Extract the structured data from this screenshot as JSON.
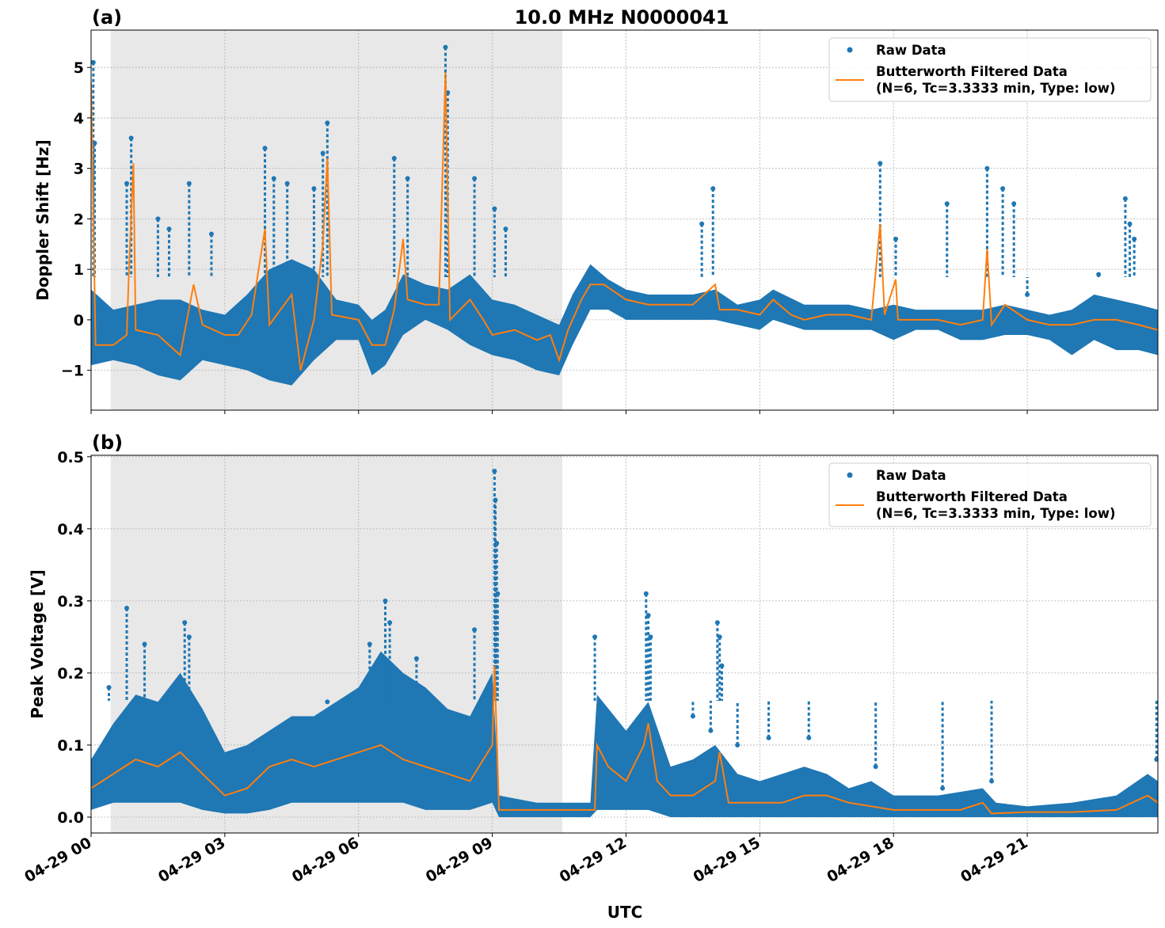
{
  "title": "10.0 MHz N0000041",
  "xlabel": "UTC",
  "x_tick_labels": [
    "04-29 00",
    "04-29 03",
    "04-29 06",
    "04-29 09",
    "04-29 12",
    "04-29 15",
    "04-29 18",
    "04-29 21"
  ],
  "x_tick_hours": [
    0,
    3,
    6,
    9,
    12,
    15,
    18,
    21
  ],
  "colors": {
    "raw": "#1f77b4",
    "filtered": "#ff7f0e",
    "shade": "#e8e8e8"
  },
  "chart_data": [
    {
      "type": "scatter+line",
      "panel_label": "(a)",
      "ylabel": "Doppler Shift [Hz]",
      "xlim": [
        0,
        23.93
      ],
      "ylim": [
        -1.79,
        5.74
      ],
      "y_ticks": [
        -1,
        0,
        1,
        2,
        3,
        4,
        5
      ],
      "y_tick_labels": [
        "−1",
        "0",
        "1",
        "2",
        "3",
        "4",
        "5"
      ],
      "grid": true,
      "legend_position": "top-right",
      "shaded_hours": [
        0.44,
        10.57
      ],
      "legend": {
        "raw": "Raw Data",
        "filtered_1": "Butterworth Filtered Data",
        "filtered_2": "(N=6, Tc=3.3333 min, Type: low)"
      },
      "raw_band": [
        [
          0,
          -0.9,
          0.6
        ],
        [
          0.5,
          -0.8,
          0.2
        ],
        [
          1,
          -0.9,
          0.3
        ],
        [
          1.5,
          -1.1,
          0.4
        ],
        [
          2,
          -1.2,
          0.4
        ],
        [
          2.5,
          -0.8,
          0.2
        ],
        [
          3,
          -0.9,
          0.1
        ],
        [
          3.5,
          -1.0,
          0.5
        ],
        [
          4,
          -1.2,
          1.0
        ],
        [
          4.5,
          -1.3,
          1.2
        ],
        [
          5,
          -0.8,
          1.0
        ],
        [
          5.5,
          -0.4,
          0.4
        ],
        [
          6,
          -0.4,
          0.3
        ],
        [
          6.3,
          -1.1,
          0.0
        ],
        [
          6.6,
          -0.9,
          0.2
        ],
        [
          7,
          -0.3,
          0.9
        ],
        [
          7.5,
          0.0,
          0.7
        ],
        [
          8,
          -0.2,
          0.6
        ],
        [
          8.5,
          -0.5,
          0.9
        ],
        [
          9,
          -0.7,
          0.4
        ],
        [
          9.5,
          -0.8,
          0.3
        ],
        [
          10,
          -1.0,
          0.1
        ],
        [
          10.5,
          -1.1,
          -0.1
        ],
        [
          10.8,
          -0.5,
          0.5
        ],
        [
          11.2,
          0.2,
          1.1
        ],
        [
          11.6,
          0.2,
          0.8
        ],
        [
          12,
          0.0,
          0.6
        ],
        [
          12.5,
          0.0,
          0.5
        ],
        [
          13,
          0.0,
          0.5
        ],
        [
          13.5,
          0.0,
          0.5
        ],
        [
          14,
          0.0,
          0.6
        ],
        [
          14.5,
          -0.1,
          0.3
        ],
        [
          15,
          -0.2,
          0.4
        ],
        [
          15.3,
          0.0,
          0.6
        ],
        [
          16,
          -0.2,
          0.3
        ],
        [
          16.5,
          -0.2,
          0.3
        ],
        [
          17,
          -0.2,
          0.3
        ],
        [
          17.5,
          -0.2,
          0.2
        ],
        [
          18,
          -0.4,
          0.3
        ],
        [
          18.5,
          -0.2,
          0.2
        ],
        [
          19,
          -0.2,
          0.2
        ],
        [
          19.5,
          -0.4,
          0.2
        ],
        [
          20,
          -0.4,
          0.2
        ],
        [
          20.5,
          -0.3,
          0.3
        ],
        [
          21,
          -0.3,
          0.2
        ],
        [
          21.5,
          -0.4,
          0.1
        ],
        [
          22,
          -0.7,
          0.2
        ],
        [
          22.5,
          -0.4,
          0.5
        ],
        [
          23,
          -0.6,
          0.4
        ],
        [
          23.5,
          -0.6,
          0.3
        ],
        [
          23.93,
          -0.7,
          0.2
        ]
      ],
      "raw_spikes": [
        [
          0.05,
          5.1
        ],
        [
          0.08,
          3.5
        ],
        [
          0.8,
          2.7
        ],
        [
          0.9,
          3.6
        ],
        [
          1.5,
          2.0
        ],
        [
          1.75,
          1.8
        ],
        [
          2.2,
          2.7
        ],
        [
          2.7,
          1.7
        ],
        [
          3.9,
          3.4
        ],
        [
          4.1,
          2.8
        ],
        [
          4.4,
          2.7
        ],
        [
          5.0,
          2.6
        ],
        [
          5.2,
          3.3
        ],
        [
          5.3,
          3.9
        ],
        [
          6.8,
          3.2
        ],
        [
          7.1,
          2.8
        ],
        [
          7.95,
          5.4
        ],
        [
          8.0,
          4.5
        ],
        [
          8.6,
          2.8
        ],
        [
          9.05,
          2.2
        ],
        [
          9.3,
          1.8
        ],
        [
          13.7,
          1.9
        ],
        [
          13.95,
          2.6
        ],
        [
          17.7,
          3.1
        ],
        [
          18.05,
          1.6
        ],
        [
          19.2,
          2.3
        ],
        [
          20.1,
          3.0
        ],
        [
          20.45,
          2.6
        ],
        [
          20.7,
          2.3
        ],
        [
          21.0,
          0.5
        ],
        [
          23.2,
          2.4
        ],
        [
          23.3,
          1.9
        ],
        [
          23.4,
          1.6
        ],
        [
          22.6,
          0.9
        ]
      ],
      "filtered": [
        [
          0,
          4.7
        ],
        [
          0.1,
          -0.5
        ],
        [
          0.5,
          -0.5
        ],
        [
          0.8,
          -0.3
        ],
        [
          0.85,
          1.0
        ],
        [
          0.95,
          3.1
        ],
        [
          1.0,
          -0.2
        ],
        [
          1.5,
          -0.3
        ],
        [
          2.0,
          -0.7
        ],
        [
          2.3,
          0.7
        ],
        [
          2.5,
          -0.1
        ],
        [
          3,
          -0.3
        ],
        [
          3.3,
          -0.3
        ],
        [
          3.6,
          0.1
        ],
        [
          3.9,
          1.8
        ],
        [
          4.0,
          -0.1
        ],
        [
          4.5,
          0.5
        ],
        [
          4.7,
          -1.0
        ],
        [
          5.0,
          0.0
        ],
        [
          5.2,
          1.5
        ],
        [
          5.3,
          3.2
        ],
        [
          5.4,
          0.1
        ],
        [
          6.0,
          0.0
        ],
        [
          6.3,
          -0.5
        ],
        [
          6.6,
          -0.5
        ],
        [
          6.8,
          0.2
        ],
        [
          7.0,
          1.6
        ],
        [
          7.1,
          0.4
        ],
        [
          7.5,
          0.3
        ],
        [
          7.8,
          0.3
        ],
        [
          7.95,
          4.9
        ],
        [
          8.05,
          0.0
        ],
        [
          8.5,
          0.4
        ],
        [
          8.8,
          0.0
        ],
        [
          9.0,
          -0.3
        ],
        [
          9.5,
          -0.2
        ],
        [
          10.0,
          -0.4
        ],
        [
          10.3,
          -0.3
        ],
        [
          10.5,
          -0.8
        ],
        [
          10.7,
          -0.2
        ],
        [
          11.0,
          0.4
        ],
        [
          11.2,
          0.7
        ],
        [
          11.5,
          0.7
        ],
        [
          12,
          0.4
        ],
        [
          12.5,
          0.3
        ],
        [
          13,
          0.3
        ],
        [
          13.5,
          0.3
        ],
        [
          14,
          0.7
        ],
        [
          14.1,
          0.2
        ],
        [
          14.5,
          0.2
        ],
        [
          15,
          0.1
        ],
        [
          15.3,
          0.4
        ],
        [
          15.7,
          0.1
        ],
        [
          16,
          0.0
        ],
        [
          16.5,
          0.1
        ],
        [
          17,
          0.1
        ],
        [
          17.5,
          0.0
        ],
        [
          17.7,
          1.9
        ],
        [
          17.8,
          0.1
        ],
        [
          18.05,
          0.8
        ],
        [
          18.1,
          0.0
        ],
        [
          19,
          0.0
        ],
        [
          19.5,
          -0.1
        ],
        [
          20,
          0.0
        ],
        [
          20.1,
          1.4
        ],
        [
          20.2,
          -0.1
        ],
        [
          20.5,
          0.3
        ],
        [
          21,
          0.0
        ],
        [
          21.5,
          -0.1
        ],
        [
          22,
          -0.1
        ],
        [
          22.5,
          0.0
        ],
        [
          23,
          0.0
        ],
        [
          23.5,
          -0.1
        ],
        [
          23.93,
          -0.2
        ]
      ]
    },
    {
      "type": "scatter+line",
      "panel_label": "(b)",
      "ylabel": "Peak Voltage [V]",
      "xlim": [
        0,
        23.93
      ],
      "ylim": [
        -0.022,
        0.502
      ],
      "y_ticks": [
        0,
        0.1,
        0.2,
        0.3,
        0.4,
        0.5
      ],
      "y_tick_labels": [
        "0.0",
        "0.1",
        "0.2",
        "0.3",
        "0.4",
        "0.5"
      ],
      "grid": true,
      "legend_position": "top-right",
      "shaded_hours": [
        0.44,
        10.57
      ],
      "legend": {
        "raw": "Raw Data",
        "filtered_1": "Butterworth Filtered Data",
        "filtered_2": "(N=6, Tc=3.3333 min, Type: low)"
      },
      "raw_band": [
        [
          0,
          0.01,
          0.08
        ],
        [
          0.5,
          0.02,
          0.13
        ],
        [
          1,
          0.02,
          0.17
        ],
        [
          1.5,
          0.02,
          0.16
        ],
        [
          2,
          0.02,
          0.2
        ],
        [
          2.5,
          0.01,
          0.15
        ],
        [
          3,
          0.005,
          0.09
        ],
        [
          3.5,
          0.005,
          0.1
        ],
        [
          4,
          0.01,
          0.12
        ],
        [
          4.5,
          0.02,
          0.14
        ],
        [
          5,
          0.02,
          0.14
        ],
        [
          5.5,
          0.02,
          0.16
        ],
        [
          6,
          0.02,
          0.18
        ],
        [
          6.5,
          0.02,
          0.23
        ],
        [
          7,
          0.02,
          0.2
        ],
        [
          7.5,
          0.01,
          0.18
        ],
        [
          8,
          0.01,
          0.15
        ],
        [
          8.5,
          0.01,
          0.14
        ],
        [
          9.0,
          0.02,
          0.2
        ],
        [
          9.15,
          0.0,
          0.03
        ],
        [
          10,
          0.0,
          0.02
        ],
        [
          11.2,
          0.0,
          0.02
        ],
        [
          11.35,
          0.01,
          0.17
        ],
        [
          12,
          0.01,
          0.12
        ],
        [
          12.5,
          0.01,
          0.16
        ],
        [
          13,
          0.0,
          0.07
        ],
        [
          13.5,
          0.0,
          0.08
        ],
        [
          14,
          0.0,
          0.1
        ],
        [
          14.5,
          0.0,
          0.06
        ],
        [
          15,
          0.0,
          0.05
        ],
        [
          15.5,
          0.0,
          0.06
        ],
        [
          16,
          0.0,
          0.07
        ],
        [
          16.5,
          0.0,
          0.06
        ],
        [
          17,
          0.0,
          0.04
        ],
        [
          17.5,
          0.0,
          0.05
        ],
        [
          18,
          0.0,
          0.03
        ],
        [
          19,
          0.0,
          0.03
        ],
        [
          20,
          0.0,
          0.04
        ],
        [
          20.3,
          0.0,
          0.02
        ],
        [
          21,
          0.0,
          0.015
        ],
        [
          22,
          0.0,
          0.02
        ],
        [
          23,
          0.0,
          0.03
        ],
        [
          23.7,
          0.0,
          0.06
        ],
        [
          23.93,
          0.0,
          0.05
        ]
      ],
      "raw_spikes": [
        [
          0.4,
          0.18
        ],
        [
          0.8,
          0.29
        ],
        [
          1.2,
          0.24
        ],
        [
          2.1,
          0.27
        ],
        [
          2.2,
          0.25
        ],
        [
          5.3,
          0.16
        ],
        [
          6.25,
          0.24
        ],
        [
          6.6,
          0.3
        ],
        [
          6.7,
          0.27
        ],
        [
          7.3,
          0.22
        ],
        [
          8.6,
          0.26
        ],
        [
          9.05,
          0.48
        ],
        [
          9.07,
          0.44
        ],
        [
          9.1,
          0.38
        ],
        [
          9.12,
          0.31
        ],
        [
          11.3,
          0.25
        ],
        [
          12.45,
          0.31
        ],
        [
          12.5,
          0.28
        ],
        [
          12.55,
          0.25
        ],
        [
          13.5,
          0.14
        ],
        [
          13.9,
          0.12
        ],
        [
          14.05,
          0.27
        ],
        [
          14.1,
          0.25
        ],
        [
          14.15,
          0.21
        ],
        [
          14.5,
          0.1
        ],
        [
          15.2,
          0.11
        ],
        [
          16.1,
          0.11
        ],
        [
          17.6,
          0.07
        ],
        [
          19.1,
          0.04
        ],
        [
          20.2,
          0.05
        ],
        [
          23.9,
          0.08
        ]
      ],
      "filtered": [
        [
          0,
          0.04
        ],
        [
          0.5,
          0.06
        ],
        [
          1,
          0.08
        ],
        [
          1.5,
          0.07
        ],
        [
          2,
          0.09
        ],
        [
          2.5,
          0.06
        ],
        [
          3,
          0.03
        ],
        [
          3.5,
          0.04
        ],
        [
          4,
          0.07
        ],
        [
          4.5,
          0.08
        ],
        [
          5,
          0.07
        ],
        [
          5.5,
          0.08
        ],
        [
          6,
          0.09
        ],
        [
          6.5,
          0.1
        ],
        [
          7,
          0.08
        ],
        [
          7.5,
          0.07
        ],
        [
          8,
          0.06
        ],
        [
          8.5,
          0.05
        ],
        [
          9.0,
          0.1
        ],
        [
          9.05,
          0.21
        ],
        [
          9.15,
          0.01
        ],
        [
          9.5,
          0.01
        ],
        [
          10,
          0.01
        ],
        [
          10.5,
          0.01
        ],
        [
          11.0,
          0.01
        ],
        [
          11.3,
          0.01
        ],
        [
          11.35,
          0.1
        ],
        [
          11.6,
          0.07
        ],
        [
          12,
          0.05
        ],
        [
          12.4,
          0.1
        ],
        [
          12.5,
          0.13
        ],
        [
          12.7,
          0.05
        ],
        [
          13,
          0.03
        ],
        [
          13.5,
          0.03
        ],
        [
          14,
          0.05
        ],
        [
          14.1,
          0.09
        ],
        [
          14.3,
          0.02
        ],
        [
          15,
          0.02
        ],
        [
          15.5,
          0.02
        ],
        [
          16,
          0.03
        ],
        [
          16.5,
          0.03
        ],
        [
          17,
          0.02
        ],
        [
          17.5,
          0.015
        ],
        [
          18,
          0.01
        ],
        [
          19,
          0.01
        ],
        [
          19.5,
          0.01
        ],
        [
          20,
          0.02
        ],
        [
          20.2,
          0.005
        ],
        [
          21,
          0.007
        ],
        [
          22,
          0.007
        ],
        [
          23,
          0.01
        ],
        [
          23.7,
          0.03
        ],
        [
          23.93,
          0.02
        ]
      ]
    }
  ]
}
